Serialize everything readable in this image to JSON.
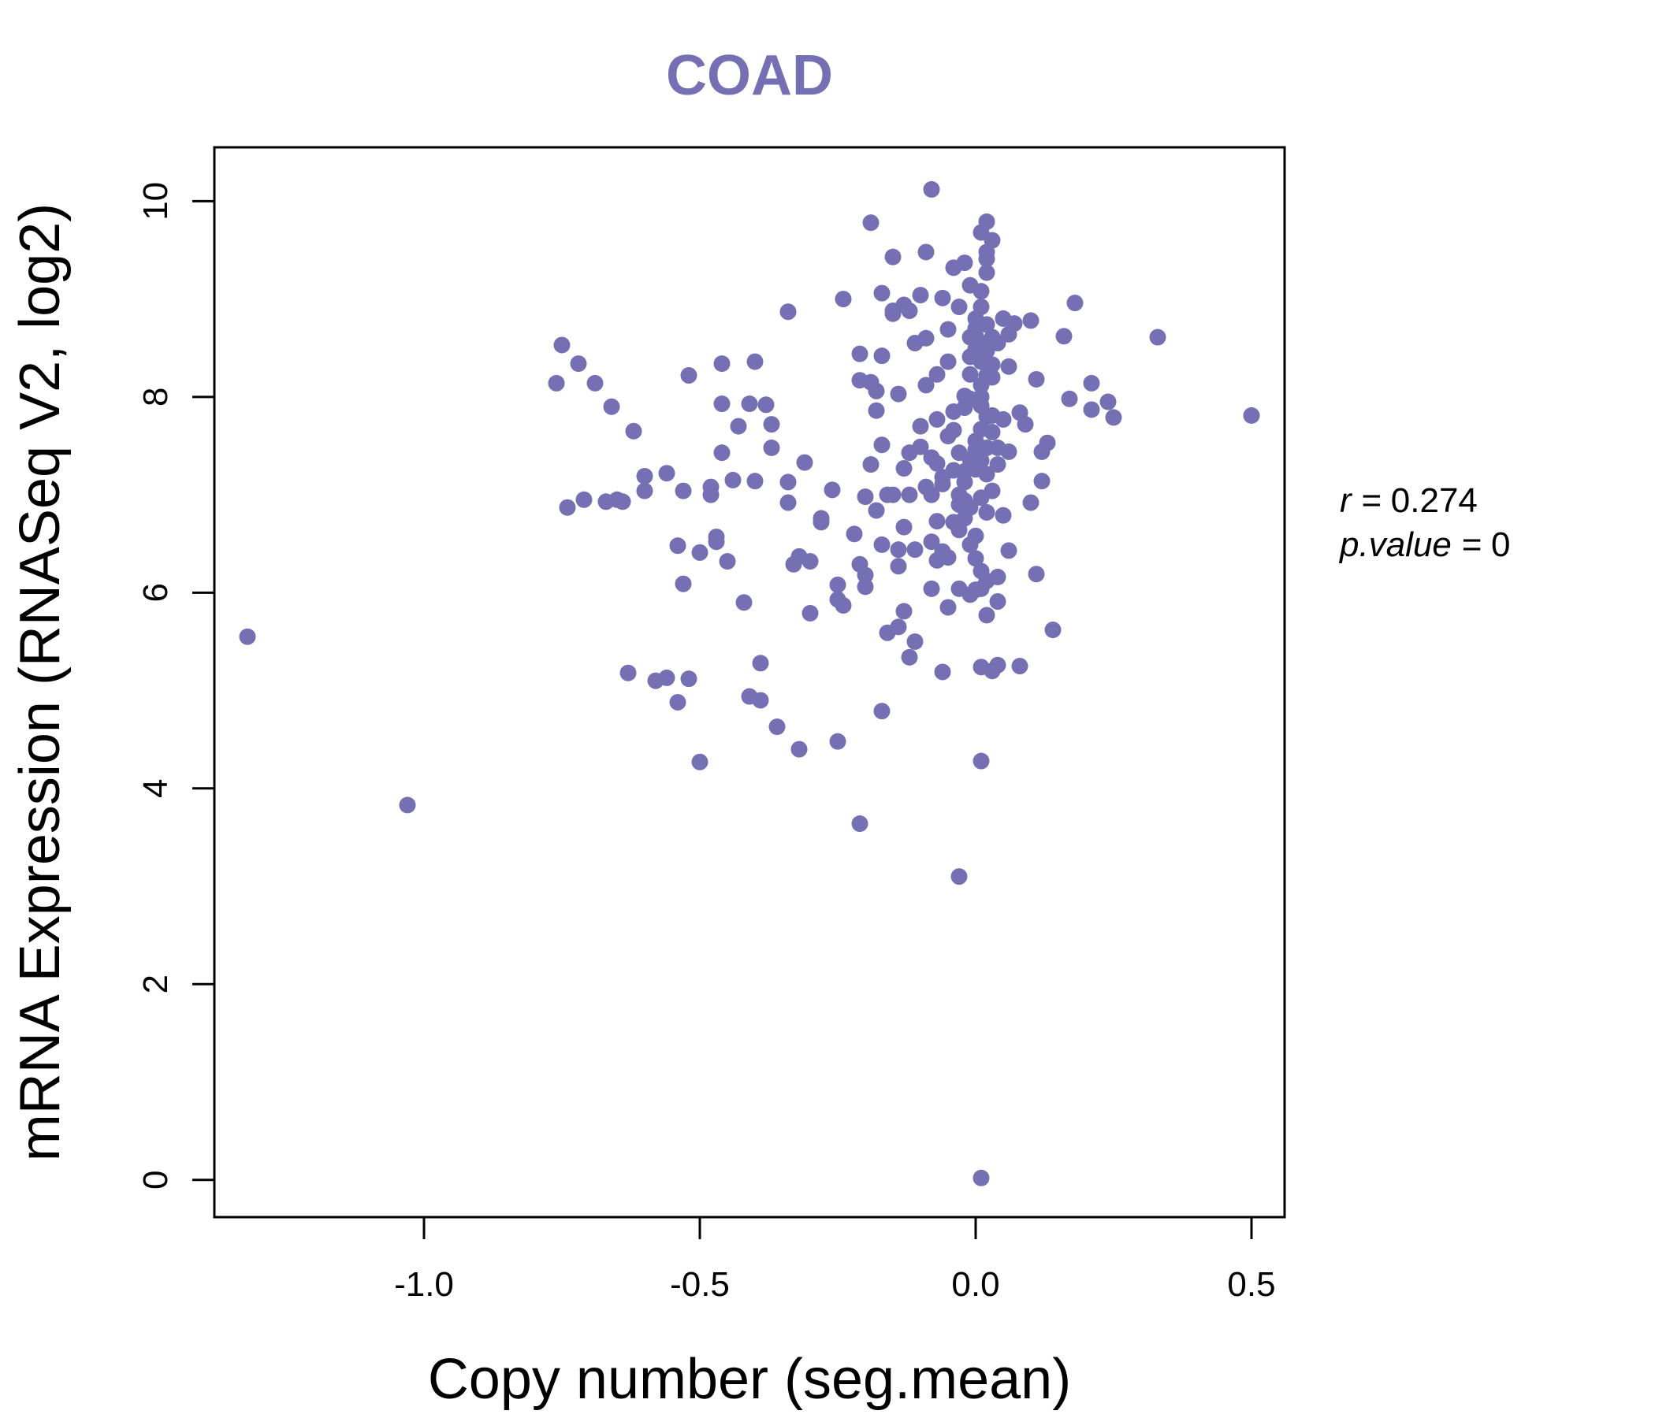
{
  "chart_data": {
    "type": "scatter",
    "title": "COAD",
    "xlabel": "Copy number (seg.mean)",
    "ylabel": "mRNA Expression (RNASeq V2, log2)",
    "xlim": [
      -1.38,
      0.56
    ],
    "ylim": [
      -0.38,
      10.55
    ],
    "x_ticks": [
      -1.0,
      -0.5,
      0.0,
      0.5
    ],
    "x_tick_labels": [
      "-1.0",
      "-0.5",
      "0.0",
      "0.5"
    ],
    "y_ticks": [
      0,
      2,
      4,
      6,
      8,
      10
    ],
    "y_tick_labels": [
      "0",
      "2",
      "4",
      "6",
      "8",
      "10"
    ],
    "point_color": "#7570b3",
    "stats": {
      "r": "0.274",
      "p_value": "0"
    },
    "points": [
      [
        -1.32,
        5.55
      ],
      [
        -1.03,
        3.83
      ],
      [
        -0.76,
        8.14
      ],
      [
        -0.75,
        8.53
      ],
      [
        -0.74,
        6.87
      ],
      [
        -0.72,
        8.34
      ],
      [
        -0.71,
        6.95
      ],
      [
        -0.69,
        8.14
      ],
      [
        -0.67,
        6.93
      ],
      [
        -0.66,
        7.9
      ],
      [
        -0.65,
        6.95
      ],
      [
        -0.64,
        6.93
      ],
      [
        -0.63,
        5.18
      ],
      [
        -0.62,
        7.65
      ],
      [
        -0.6,
        7.19
      ],
      [
        -0.6,
        7.04
      ],
      [
        -0.58,
        5.1
      ],
      [
        -0.56,
        5.13
      ],
      [
        -0.56,
        7.22
      ],
      [
        -0.54,
        6.48
      ],
      [
        -0.54,
        4.88
      ],
      [
        -0.53,
        6.09
      ],
      [
        -0.53,
        7.04
      ],
      [
        -0.52,
        8.22
      ],
      [
        -0.52,
        5.12
      ],
      [
        -0.5,
        6.41
      ],
      [
        -0.5,
        4.27
      ],
      [
        -0.48,
        7.08
      ],
      [
        -0.48,
        7.0
      ],
      [
        -0.47,
        6.57
      ],
      [
        -0.47,
        6.52
      ],
      [
        -0.46,
        7.43
      ],
      [
        -0.46,
        8.34
      ],
      [
        -0.46,
        7.93
      ],
      [
        -0.45,
        6.32
      ],
      [
        -0.44,
        7.15
      ],
      [
        -0.43,
        7.7
      ],
      [
        -0.42,
        5.9
      ],
      [
        -0.41,
        4.94
      ],
      [
        -0.41,
        7.93
      ],
      [
        -0.4,
        7.14
      ],
      [
        -0.4,
        8.36
      ],
      [
        -0.39,
        4.9
      ],
      [
        -0.39,
        5.28
      ],
      [
        -0.38,
        7.92
      ],
      [
        -0.37,
        7.72
      ],
      [
        -0.37,
        7.48
      ],
      [
        -0.36,
        4.63
      ],
      [
        -0.34,
        7.13
      ],
      [
        -0.34,
        6.92
      ],
      [
        -0.34,
        8.87
      ],
      [
        -0.33,
        6.29
      ],
      [
        -0.32,
        4.4
      ],
      [
        -0.32,
        6.37
      ],
      [
        -0.31,
        7.33
      ],
      [
        -0.3,
        6.32
      ],
      [
        -0.3,
        5.79
      ],
      [
        -0.28,
        6.72
      ],
      [
        -0.28,
        6.76
      ],
      [
        -0.26,
        7.05
      ],
      [
        -0.25,
        4.48
      ],
      [
        -0.25,
        6.08
      ],
      [
        -0.25,
        5.93
      ],
      [
        -0.24,
        5.87
      ],
      [
        -0.24,
        9.0
      ],
      [
        -0.22,
        6.6
      ],
      [
        -0.21,
        6.29
      ],
      [
        -0.21,
        8.17
      ],
      [
        -0.21,
        8.44
      ],
      [
        -0.21,
        3.64
      ],
      [
        -0.2,
        6.06
      ],
      [
        -0.2,
        6.18
      ],
      [
        -0.2,
        6.98
      ],
      [
        -0.19,
        9.78
      ],
      [
        -0.19,
        8.15
      ],
      [
        -0.19,
        7.31
      ],
      [
        -0.18,
        8.06
      ],
      [
        -0.18,
        7.86
      ],
      [
        -0.18,
        6.84
      ],
      [
        -0.17,
        8.42
      ],
      [
        -0.17,
        6.49
      ],
      [
        -0.17,
        4.79
      ],
      [
        -0.17,
        9.06
      ],
      [
        -0.17,
        7.51
      ],
      [
        -0.16,
        7.0
      ],
      [
        -0.16,
        5.59
      ],
      [
        -0.15,
        8.85
      ],
      [
        -0.15,
        9.43
      ],
      [
        -0.15,
        8.88
      ],
      [
        -0.15,
        7.0
      ],
      [
        -0.14,
        6.27
      ],
      [
        -0.14,
        8.03
      ],
      [
        -0.14,
        5.65
      ],
      [
        -0.14,
        6.44
      ],
      [
        -0.13,
        5.81
      ],
      [
        -0.13,
        6.67
      ],
      [
        -0.13,
        7.27
      ],
      [
        -0.13,
        8.94
      ],
      [
        -0.12,
        8.88
      ],
      [
        -0.12,
        5.34
      ],
      [
        -0.12,
        7.0
      ],
      [
        -0.12,
        7.43
      ],
      [
        -0.11,
        6.44
      ],
      [
        -0.11,
        5.5
      ],
      [
        -0.11,
        8.55
      ],
      [
        -0.1,
        7.49
      ],
      [
        -0.1,
        9.04
      ],
      [
        -0.1,
        7.7
      ],
      [
        -0.09,
        7.08
      ],
      [
        -0.09,
        8.12
      ],
      [
        -0.09,
        9.48
      ],
      [
        -0.09,
        8.6
      ],
      [
        -0.08,
        6.52
      ],
      [
        -0.08,
        7.38
      ],
      [
        -0.08,
        7.0
      ],
      [
        -0.08,
        10.12
      ],
      [
        -0.08,
        6.04
      ],
      [
        -0.07,
        8.23
      ],
      [
        -0.07,
        7.77
      ],
      [
        -0.07,
        6.33
      ],
      [
        -0.07,
        7.32
      ],
      [
        -0.07,
        6.73
      ],
      [
        -0.06,
        9.01
      ],
      [
        -0.06,
        7.18
      ],
      [
        -0.06,
        5.19
      ],
      [
        -0.06,
        7.11
      ],
      [
        -0.06,
        6.42
      ],
      [
        -0.05,
        6.36
      ],
      [
        -0.05,
        8.69
      ],
      [
        -0.05,
        7.6
      ],
      [
        -0.05,
        8.36
      ],
      [
        -0.05,
        5.85
      ],
      [
        -0.04,
        7.66
      ],
      [
        -0.04,
        7.85
      ],
      [
        -0.04,
        9.32
      ],
      [
        -0.04,
        7.25
      ],
      [
        -0.04,
        6.72
      ],
      [
        -0.03,
        8.92
      ],
      [
        -0.03,
        6.64
      ],
      [
        -0.03,
        7.0
      ],
      [
        -0.03,
        6.9
      ],
      [
        -0.03,
        7.43
      ],
      [
        -0.03,
        6.04
      ],
      [
        -0.03,
        3.1
      ],
      [
        -0.02,
        9.37
      ],
      [
        -0.02,
        6.94
      ],
      [
        -0.02,
        7.13
      ],
      [
        -0.02,
        8.01
      ],
      [
        -0.02,
        7.89
      ],
      [
        -0.02,
        6.76
      ],
      [
        -0.02,
        7.24
      ],
      [
        -0.01,
        9.14
      ],
      [
        -0.01,
        8.23
      ],
      [
        -0.01,
        8.41
      ],
      [
        -0.01,
        7.98
      ],
      [
        -0.01,
        6.87
      ],
      [
        -0.01,
        5.98
      ],
      [
        -0.01,
        8.61
      ],
      [
        -0.01,
        6.49
      ],
      [
        -0.01,
        7.36
      ],
      [
        0.0,
        6.03
      ],
      [
        0.0,
        8.8
      ],
      [
        0.0,
        7.55
      ],
      [
        0.0,
        8.62
      ],
      [
        0.0,
        7.26
      ],
      [
        0.0,
        6.58
      ],
      [
        0.0,
        7.46
      ],
      [
        0.0,
        8.49
      ],
      [
        0.0,
        8.7
      ],
      [
        0.0,
        6.35
      ],
      [
        0.01,
        7.91
      ],
      [
        0.01,
        6.22
      ],
      [
        0.01,
        7.67
      ],
      [
        0.01,
        9.08
      ],
      [
        0.01,
        5.24
      ],
      [
        0.01,
        6.04
      ],
      [
        0.01,
        9.68
      ],
      [
        0.01,
        8.36
      ],
      [
        0.01,
        8.0
      ],
      [
        0.01,
        7.35
      ],
      [
        0.01,
        8.92
      ],
      [
        0.01,
        8.55
      ],
      [
        0.01,
        4.28
      ],
      [
        0.01,
        0.02
      ],
      [
        0.01,
        6.97
      ],
      [
        0.01,
        8.12
      ],
      [
        0.02,
        7.8
      ],
      [
        0.02,
        9.48
      ],
      [
        0.02,
        9.27
      ],
      [
        0.02,
        8.47
      ],
      [
        0.02,
        9.41
      ],
      [
        0.02,
        7.21
      ],
      [
        0.02,
        5.77
      ],
      [
        0.02,
        6.82
      ],
      [
        0.02,
        8.22
      ],
      [
        0.02,
        9.79
      ],
      [
        0.02,
        7.48
      ],
      [
        0.02,
        8.74
      ],
      [
        0.02,
        6.12
      ],
      [
        0.03,
        5.2
      ],
      [
        0.03,
        8.55
      ],
      [
        0.03,
        9.6
      ],
      [
        0.03,
        8.33
      ],
      [
        0.03,
        7.04
      ],
      [
        0.03,
        8.2
      ],
      [
        0.03,
        7.64
      ],
      [
        0.03,
        7.81
      ],
      [
        0.03,
        8.61
      ],
      [
        0.04,
        7.31
      ],
      [
        0.04,
        6.16
      ],
      [
        0.04,
        8.55
      ],
      [
        0.04,
        5.26
      ],
      [
        0.04,
        7.48
      ],
      [
        0.04,
        5.91
      ],
      [
        0.05,
        6.79
      ],
      [
        0.05,
        7.77
      ],
      [
        0.05,
        8.8
      ],
      [
        0.06,
        7.44
      ],
      [
        0.06,
        8.31
      ],
      [
        0.06,
        6.43
      ],
      [
        0.06,
        8.64
      ],
      [
        0.07,
        8.75
      ],
      [
        0.08,
        5.25
      ],
      [
        0.08,
        7.84
      ],
      [
        0.09,
        7.72
      ],
      [
        0.1,
        8.78
      ],
      [
        0.1,
        6.92
      ],
      [
        0.11,
        8.18
      ],
      [
        0.11,
        6.19
      ],
      [
        0.12,
        7.14
      ],
      [
        0.12,
        7.44
      ],
      [
        0.13,
        7.53
      ],
      [
        0.14,
        5.62
      ],
      [
        0.16,
        8.62
      ],
      [
        0.17,
        7.98
      ],
      [
        0.18,
        8.96
      ],
      [
        0.21,
        7.87
      ],
      [
        0.21,
        8.14
      ],
      [
        0.24,
        7.95
      ],
      [
        0.25,
        7.79
      ],
      [
        0.33,
        8.61
      ],
      [
        0.5,
        7.81
      ]
    ]
  }
}
